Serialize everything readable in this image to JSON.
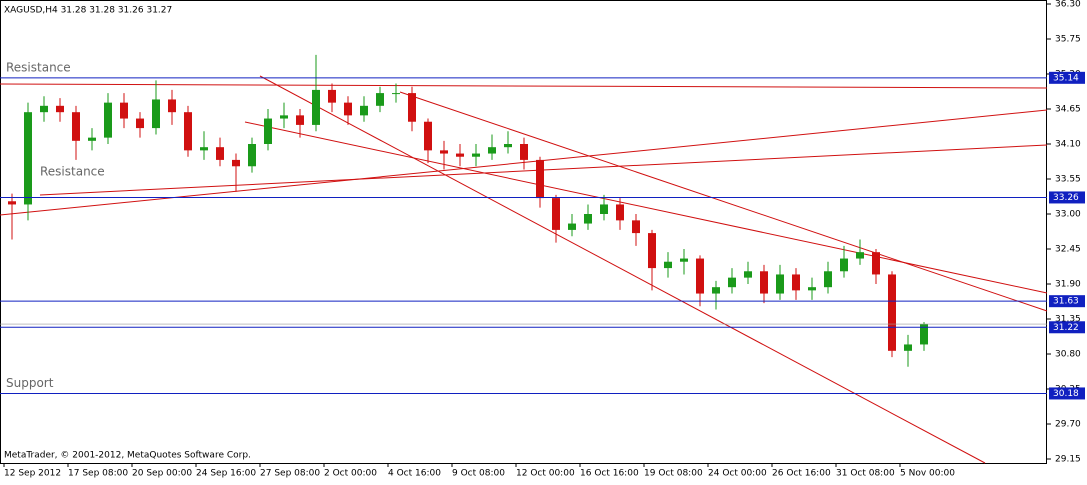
{
  "chart_data": {
    "type": "candlestick",
    "title": "XAGUSD,H4  31.28 31.28 31.26 31.27",
    "footer": "MetaTrader, © 2001-2012, MetaQuotes Software Corp.",
    "up_color": "#1a9a1a",
    "down_color": "#d01010",
    "ylim": [
      29.15,
      36.3
    ],
    "yticks": [
      {
        "value": 36.3,
        "label": "36.30"
      },
      35.75,
      {
        "value": 35.2,
        "label": "35.20"
      },
      34.65,
      {
        "value": 34.1,
        "label": "34.10"
      },
      33.55,
      {
        "value": 33.0,
        "label": "33.00"
      },
      32.45,
      {
        "value": 31.9,
        "label": "31.90"
      },
      31.35,
      {
        "value": 30.8,
        "label": "30.80"
      },
      30.25,
      {
        "value": 29.7,
        "label": "29.70"
      },
      29.15
    ],
    "xlabels": [
      "12 Sep 2012",
      "17 Sep 08:00",
      "20 Sep 00:00",
      "24 Sep 16:00",
      "27 Sep 08:00",
      "2 Oct 00:00",
      "4 Oct 16:00",
      "9 Oct 08:00",
      "12 Oct 00:00",
      "16 Oct 16:00",
      "19 Oct 08:00",
      "24 Oct 00:00",
      "26 Oct 16:00",
      "31 Oct 08:00",
      "5 Nov 00:00"
    ],
    "levels": [
      35.14,
      33.26,
      31.63,
      31.22,
      30.18
    ],
    "annotations": [
      {
        "text": "Resistance",
        "value": 35.14
      },
      {
        "text": "Resistance",
        "value": 33.5
      },
      {
        "text": "Support",
        "value": 30.18
      }
    ],
    "open": [
      33.2,
      33.15,
      34.6,
      34.7,
      34.6,
      34.15,
      34.2,
      34.75,
      34.5,
      34.35,
      34.8,
      34.6,
      34.0,
      34.05,
      33.85,
      33.75,
      34.1,
      34.5,
      34.55,
      34.4,
      34.95,
      34.75,
      34.55,
      34.7,
      34.9,
      34.9,
      34.45,
      34.0,
      33.95,
      33.9,
      33.95,
      34.05,
      34.1,
      33.85,
      33.25,
      32.75,
      32.85,
      33.0,
      33.15,
      32.9,
      32.7,
      32.15,
      32.25,
      32.3,
      31.75,
      31.85,
      32.0,
      32.1,
      31.75,
      32.05,
      31.8,
      31.85,
      32.1,
      32.3,
      32.4,
      32.05,
      30.85,
      30.95
    ],
    "high": [
      33.32,
      34.75,
      34.85,
      34.82,
      34.7,
      34.35,
      34.9,
      34.9,
      34.6,
      35.1,
      34.95,
      34.7,
      34.3,
      34.2,
      33.95,
      34.2,
      34.65,
      34.75,
      34.65,
      35.5,
      35.05,
      34.85,
      34.85,
      35.0,
      35.05,
      35.0,
      34.5,
      34.15,
      34.1,
      34.1,
      34.25,
      34.3,
      34.2,
      33.9,
      33.3,
      33.0,
      33.15,
      33.3,
      33.25,
      33.0,
      32.75,
      32.4,
      32.45,
      32.35,
      31.95,
      32.15,
      32.25,
      32.2,
      32.2,
      32.15,
      32.0,
      32.25,
      32.5,
      32.6,
      32.45,
      32.1,
      31.1,
      31.3
    ],
    "low": [
      32.6,
      32.9,
      34.45,
      34.45,
      33.85,
      34.0,
      34.1,
      34.35,
      34.2,
      34.25,
      34.4,
      33.9,
      33.85,
      33.75,
      33.35,
      33.65,
      34.0,
      34.35,
      34.2,
      34.3,
      34.6,
      34.4,
      34.45,
      34.6,
      34.75,
      34.3,
      33.8,
      33.7,
      33.75,
      33.75,
      33.85,
      33.95,
      33.7,
      33.1,
      32.55,
      32.65,
      32.75,
      32.9,
      32.75,
      32.5,
      31.8,
      32.0,
      32.05,
      31.55,
      31.5,
      31.75,
      31.9,
      31.6,
      31.65,
      31.65,
      31.65,
      31.75,
      32.0,
      32.2,
      31.9,
      30.75,
      30.6,
      30.85
    ],
    "close": [
      33.15,
      34.6,
      34.7,
      34.6,
      34.15,
      34.2,
      34.75,
      34.5,
      34.35,
      34.8,
      34.6,
      34.0,
      34.05,
      33.85,
      33.75,
      34.1,
      34.5,
      34.55,
      34.4,
      34.95,
      34.75,
      34.55,
      34.7,
      34.9,
      34.9,
      34.45,
      34.0,
      33.95,
      33.9,
      33.95,
      34.05,
      34.1,
      33.85,
      33.25,
      32.75,
      32.85,
      33.0,
      33.15,
      32.9,
      32.7,
      32.15,
      32.25,
      32.3,
      31.75,
      31.85,
      32.0,
      32.1,
      31.75,
      32.05,
      31.8,
      31.85,
      32.1,
      32.3,
      32.4,
      32.05,
      30.85,
      30.95,
      31.27
    ]
  }
}
